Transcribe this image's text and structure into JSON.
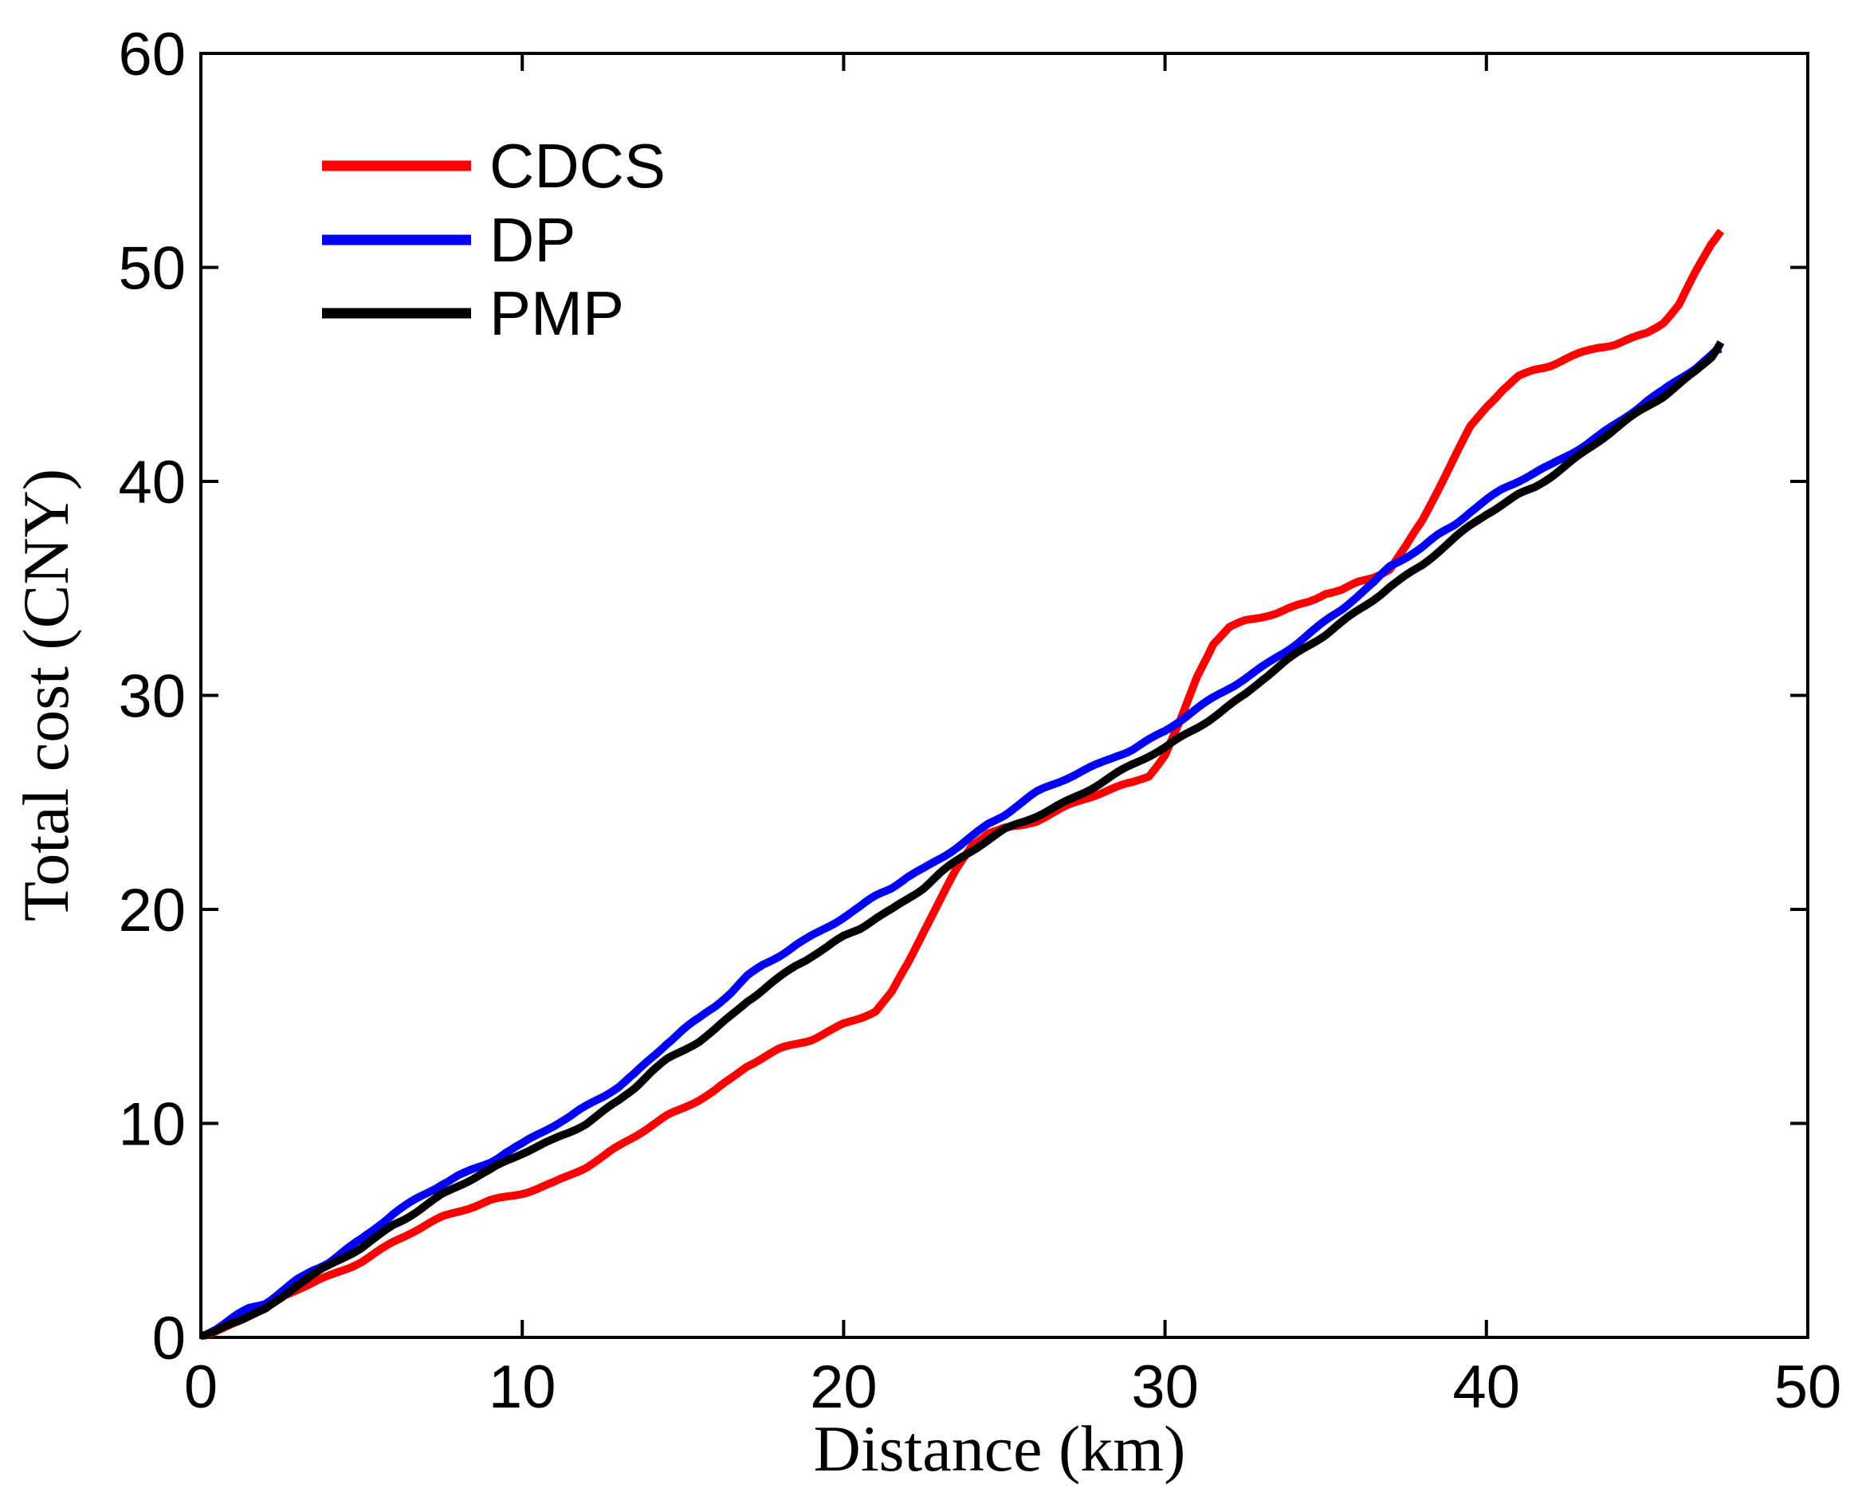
{
  "figure": {
    "background": "#ffffff"
  },
  "chart_data": {
    "type": "line",
    "title": "",
    "xlabel": "Distance (km)",
    "ylabel": "Total cost (CNY)",
    "xlim": [
      0,
      50
    ],
    "ylim": [
      0,
      60
    ],
    "x_ticks": [
      "0",
      "10",
      "20",
      "30",
      "40",
      "50"
    ],
    "y_ticks": [
      "0",
      "10",
      "20",
      "30",
      "40",
      "50",
      "60"
    ],
    "grid": false,
    "box": true,
    "tick_direction": "in",
    "legend": {
      "position": "upper-left-inside",
      "frame": false
    },
    "axis_color": "#000000",
    "series": [
      {
        "name": "CDCS",
        "color": "#ff0000",
        "points": [
          [
            0,
            0
          ],
          [
            0.5,
            0.3
          ],
          [
            1,
            0.65
          ],
          [
            1.5,
            0.95
          ],
          [
            2,
            1.2
          ],
          [
            2.5,
            1.7
          ],
          [
            3,
            2.1
          ],
          [
            3.5,
            2.45
          ],
          [
            4,
            2.8
          ],
          [
            4.5,
            3.2
          ],
          [
            5,
            3.6
          ],
          [
            5.5,
            4.05
          ],
          [
            6,
            4.5
          ],
          [
            6.5,
            4.9
          ],
          [
            7,
            5.25
          ],
          [
            7.5,
            5.6
          ],
          [
            8,
            5.9
          ],
          [
            8.5,
            6.2
          ],
          [
            9,
            6.5
          ],
          [
            9.5,
            6.7
          ],
          [
            10,
            6.9
          ],
          [
            10.5,
            7.1
          ],
          [
            11,
            7.3
          ],
          [
            11.5,
            7.6
          ],
          [
            12,
            7.9
          ],
          [
            12.5,
            8.3
          ],
          [
            13,
            8.8
          ],
          [
            13.5,
            9.3
          ],
          [
            14,
            9.8
          ],
          [
            14.5,
            10.3
          ],
          [
            15,
            10.7
          ],
          [
            15.5,
            11.1
          ],
          [
            16,
            11.5
          ],
          [
            16.5,
            12.0
          ],
          [
            17,
            12.6
          ],
          [
            17.5,
            13.0
          ],
          [
            18,
            13.4
          ],
          [
            18.5,
            13.7
          ],
          [
            19,
            14.0
          ],
          [
            19.5,
            14.4
          ],
          [
            20,
            14.8
          ],
          [
            20.5,
            15.1
          ],
          [
            21,
            15.4
          ],
          [
            21.5,
            16.2
          ],
          [
            22,
            17.5
          ],
          [
            22.5,
            19.0
          ],
          [
            23,
            20.4
          ],
          [
            23.5,
            21.8
          ],
          [
            24,
            23.0
          ],
          [
            24.5,
            23.6
          ],
          [
            25,
            23.8
          ],
          [
            25.5,
            23.9
          ],
          [
            26,
            24.1
          ],
          [
            26.5,
            24.4
          ],
          [
            27,
            24.7
          ],
          [
            27.5,
            25.0
          ],
          [
            28,
            25.3
          ],
          [
            28.5,
            25.6
          ],
          [
            29,
            25.9
          ],
          [
            29.5,
            26.3
          ],
          [
            30,
            27.3
          ],
          [
            30.5,
            29.0
          ],
          [
            31,
            31.0
          ],
          [
            31.5,
            32.5
          ],
          [
            32,
            33.2
          ],
          [
            32.5,
            33.5
          ],
          [
            33,
            33.7
          ],
          [
            33.5,
            33.9
          ],
          [
            34,
            34.2
          ],
          [
            34.5,
            34.5
          ],
          [
            35,
            34.9
          ],
          [
            35.5,
            35.0
          ],
          [
            36,
            35.3
          ],
          [
            36.5,
            35.5
          ],
          [
            37,
            35.8
          ],
          [
            37.5,
            36.8
          ],
          [
            38,
            38.0
          ],
          [
            38.5,
            39.5
          ],
          [
            39,
            41.0
          ],
          [
            39.5,
            42.5
          ],
          [
            40,
            43.5
          ],
          [
            40.5,
            44.3
          ],
          [
            41,
            44.9
          ],
          [
            41.5,
            45.2
          ],
          [
            42,
            45.4
          ],
          [
            42.5,
            45.7
          ],
          [
            43,
            46.0
          ],
          [
            43.5,
            46.3
          ],
          [
            44,
            46.5
          ],
          [
            44.5,
            46.8
          ],
          [
            45,
            47.1
          ],
          [
            45.5,
            47.6
          ],
          [
            46,
            48.4
          ],
          [
            46.5,
            49.8
          ],
          [
            47,
            51.1
          ],
          [
            47.3,
            51.7
          ]
        ]
      },
      {
        "name": "DP",
        "color": "#0000ff",
        "points": [
          [
            0,
            0
          ],
          [
            0.5,
            0.35
          ],
          [
            1,
            0.8
          ],
          [
            1.5,
            1.2
          ],
          [
            2,
            1.5
          ],
          [
            2.5,
            2.1
          ],
          [
            3,
            2.7
          ],
          [
            3.5,
            3.2
          ],
          [
            4,
            3.6
          ],
          [
            4.5,
            4.1
          ],
          [
            5,
            4.6
          ],
          [
            5.5,
            5.2
          ],
          [
            6,
            5.8
          ],
          [
            6.5,
            6.3
          ],
          [
            7,
            6.8
          ],
          [
            7.5,
            7.3
          ],
          [
            8,
            7.7
          ],
          [
            8.5,
            8.0
          ],
          [
            9,
            8.3
          ],
          [
            9.5,
            8.7
          ],
          [
            10,
            9.0
          ],
          [
            10.5,
            9.4
          ],
          [
            11,
            9.8
          ],
          [
            11.5,
            10.2
          ],
          [
            12,
            10.7
          ],
          [
            12.5,
            11.2
          ],
          [
            13,
            11.7
          ],
          [
            13.5,
            12.3
          ],
          [
            14,
            13.0
          ],
          [
            14.5,
            13.7
          ],
          [
            15,
            14.3
          ],
          [
            15.5,
            14.8
          ],
          [
            16,
            15.4
          ],
          [
            16.5,
            16.1
          ],
          [
            17,
            16.9
          ],
          [
            17.5,
            17.5
          ],
          [
            18,
            18.0
          ],
          [
            18.5,
            18.5
          ],
          [
            19,
            18.9
          ],
          [
            19.5,
            19.3
          ],
          [
            20,
            19.7
          ],
          [
            20.5,
            20.1
          ],
          [
            21,
            20.6
          ],
          [
            21.5,
            21.0
          ],
          [
            22,
            21.5
          ],
          [
            22.5,
            21.9
          ],
          [
            23,
            22.4
          ],
          [
            23.5,
            22.9
          ],
          [
            24,
            23.4
          ],
          [
            24.5,
            23.9
          ],
          [
            25,
            24.3
          ],
          [
            25.5,
            24.8
          ],
          [
            26,
            25.3
          ],
          [
            26.5,
            25.7
          ],
          [
            27,
            26.1
          ],
          [
            27.5,
            26.5
          ],
          [
            28,
            26.9
          ],
          [
            28.5,
            27.3
          ],
          [
            29,
            27.6
          ],
          [
            29.5,
            28.0
          ],
          [
            30,
            28.4
          ],
          [
            30.5,
            28.9
          ],
          [
            31,
            29.4
          ],
          [
            31.5,
            29.9
          ],
          [
            32,
            30.4
          ],
          [
            32.5,
            30.9
          ],
          [
            33,
            31.4
          ],
          [
            33.5,
            31.9
          ],
          [
            34,
            32.4
          ],
          [
            34.5,
            32.9
          ],
          [
            35,
            33.4
          ],
          [
            35.5,
            33.9
          ],
          [
            36,
            34.5
          ],
          [
            36.5,
            35.1
          ],
          [
            37,
            35.9
          ],
          [
            37.5,
            36.4
          ],
          [
            38,
            36.9
          ],
          [
            38.5,
            37.5
          ],
          [
            39,
            38.0
          ],
          [
            39.5,
            38.6
          ],
          [
            40,
            39.1
          ],
          [
            40.5,
            39.6
          ],
          [
            41,
            40.0
          ],
          [
            41.5,
            40.4
          ],
          [
            42,
            40.8
          ],
          [
            42.5,
            41.3
          ],
          [
            43,
            41.8
          ],
          [
            43.5,
            42.3
          ],
          [
            44,
            42.8
          ],
          [
            44.5,
            43.3
          ],
          [
            45,
            43.8
          ],
          [
            45.5,
            44.2
          ],
          [
            46,
            44.7
          ],
          [
            46.5,
            45.2
          ],
          [
            47,
            45.8
          ],
          [
            47.3,
            46.2
          ]
        ]
      },
      {
        "name": "PMP",
        "color": "#000000",
        "points": [
          [
            0,
            0
          ],
          [
            0.5,
            0.3
          ],
          [
            1,
            0.7
          ],
          [
            1.5,
            1.05
          ],
          [
            2,
            1.35
          ],
          [
            2.5,
            1.9
          ],
          [
            3,
            2.5
          ],
          [
            3.5,
            2.95
          ],
          [
            4,
            3.35
          ],
          [
            4.5,
            3.8
          ],
          [
            5,
            4.25
          ],
          [
            5.5,
            4.8
          ],
          [
            6,
            5.4
          ],
          [
            6.5,
            5.85
          ],
          [
            7,
            6.3
          ],
          [
            7.5,
            6.75
          ],
          [
            8,
            7.1
          ],
          [
            8.5,
            7.4
          ],
          [
            9,
            7.7
          ],
          [
            9.5,
            8.1
          ],
          [
            10,
            8.5
          ],
          [
            10.5,
            8.85
          ],
          [
            11,
            9.2
          ],
          [
            11.5,
            9.6
          ],
          [
            12,
            10.0
          ],
          [
            12.5,
            10.5
          ],
          [
            13,
            11.0
          ],
          [
            13.5,
            11.6
          ],
          [
            14,
            12.3
          ],
          [
            14.5,
            12.9
          ],
          [
            15,
            13.4
          ],
          [
            15.5,
            13.9
          ],
          [
            16,
            14.5
          ],
          [
            16.5,
            15.2
          ],
          [
            17,
            15.9
          ],
          [
            17.5,
            16.4
          ],
          [
            18,
            16.9
          ],
          [
            18.5,
            17.4
          ],
          [
            19,
            17.8
          ],
          [
            19.5,
            18.2
          ],
          [
            20,
            18.7
          ],
          [
            20.5,
            19.1
          ],
          [
            21,
            19.6
          ],
          [
            21.5,
            20.0
          ],
          [
            22,
            20.5
          ],
          [
            22.5,
            21.0
          ],
          [
            23,
            21.6
          ],
          [
            23.5,
            22.1
          ],
          [
            24,
            22.6
          ],
          [
            24.5,
            23.1
          ],
          [
            25,
            23.6
          ],
          [
            25.5,
            24.0
          ],
          [
            26,
            24.4
          ],
          [
            26.5,
            24.8
          ],
          [
            27,
            25.2
          ],
          [
            27.5,
            25.6
          ],
          [
            28,
            26.0
          ],
          [
            28.5,
            26.4
          ],
          [
            29,
            26.8
          ],
          [
            29.5,
            27.2
          ],
          [
            30,
            27.6
          ],
          [
            30.5,
            28.1
          ],
          [
            31,
            28.6
          ],
          [
            31.5,
            29.1
          ],
          [
            32,
            29.6
          ],
          [
            32.5,
            30.1
          ],
          [
            33,
            30.7
          ],
          [
            33.5,
            31.2
          ],
          [
            34,
            31.7
          ],
          [
            34.5,
            32.2
          ],
          [
            35,
            32.7
          ],
          [
            35.5,
            33.3
          ],
          [
            36,
            33.9
          ],
          [
            36.5,
            34.5
          ],
          [
            37,
            35.1
          ],
          [
            37.5,
            35.6
          ],
          [
            38,
            36.1
          ],
          [
            38.5,
            36.7
          ],
          [
            39,
            37.3
          ],
          [
            39.5,
            37.9
          ],
          [
            40,
            38.5
          ],
          [
            40.5,
            39.0
          ],
          [
            41,
            39.5
          ],
          [
            41.5,
            39.9
          ],
          [
            42,
            40.4
          ],
          [
            42.5,
            40.9
          ],
          [
            43,
            41.4
          ],
          [
            43.5,
            41.9
          ],
          [
            44,
            42.4
          ],
          [
            44.5,
            42.9
          ],
          [
            45,
            43.4
          ],
          [
            45.5,
            43.9
          ],
          [
            46,
            44.5
          ],
          [
            46.5,
            45.1
          ],
          [
            47,
            45.8
          ],
          [
            47.3,
            46.5
          ]
        ]
      }
    ]
  }
}
